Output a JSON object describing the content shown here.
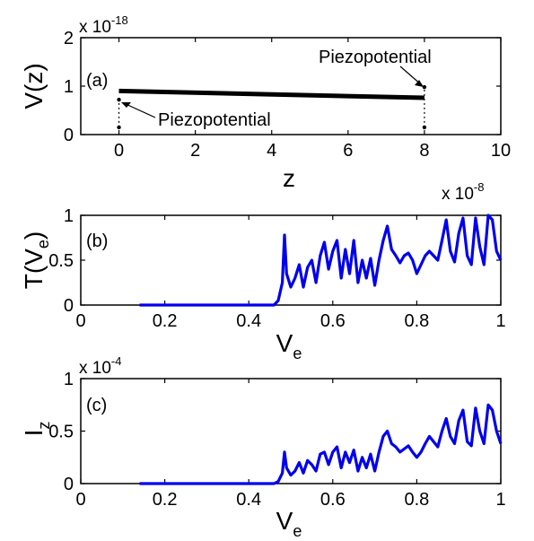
{
  "chart_data": [
    {
      "panel": "(a)",
      "type": "line",
      "xlim": [
        -1,
        10
      ],
      "ylim": [
        0,
        2
      ],
      "xticks": [
        "0",
        "2",
        "4",
        "6",
        "8",
        "10"
      ],
      "yticks": [
        "0",
        "1",
        "2"
      ],
      "xlabel": "z",
      "ylabel": "V(z)",
      "x_multiplier": {
        "base": "x 10",
        "exp": "-8"
      },
      "y_multiplier": {
        "base": "x 10",
        "exp": "-18"
      },
      "series": [
        {
          "x": [
            0,
            8
          ],
          "y": [
            0.9,
            0.76
          ],
          "color": "#000000"
        }
      ],
      "markers": [
        {
          "x": 0,
          "y": 0.15
        },
        {
          "x": 0,
          "y": 0.72
        },
        {
          "x": 8,
          "y": 0.15
        },
        {
          "x": 8,
          "y": 0.98
        }
      ],
      "annotations": [
        {
          "text": "Piezopotential",
          "point_x": 0,
          "point_y": 0.72
        },
        {
          "text": "Piezopotential",
          "point_x": 8,
          "point_y": 0.98
        }
      ]
    },
    {
      "panel": "(b)",
      "type": "line",
      "xlim": [
        0,
        1
      ],
      "ylim": [
        0,
        1
      ],
      "xticks": [
        "0",
        "0.2",
        "0.4",
        "0.6",
        "0.8",
        "1"
      ],
      "yticks": [
        "0",
        "0.5",
        "1"
      ],
      "xlabel": {
        "main": "V",
        "sub": "e"
      },
      "ylabel": {
        "pre": "T(V",
        "sub": "e",
        "post": ")"
      },
      "series": [
        {
          "color": "#0000ee",
          "x": [
            0.14,
            0.2,
            0.3,
            0.4,
            0.46,
            0.47,
            0.48,
            0.485,
            0.49,
            0.5,
            0.51,
            0.52,
            0.53,
            0.54,
            0.55,
            0.56,
            0.57,
            0.58,
            0.59,
            0.6,
            0.61,
            0.62,
            0.63,
            0.64,
            0.65,
            0.66,
            0.67,
            0.68,
            0.69,
            0.7,
            0.71,
            0.72,
            0.73,
            0.74,
            0.75,
            0.76,
            0.77,
            0.78,
            0.79,
            0.8,
            0.81,
            0.82,
            0.83,
            0.84,
            0.85,
            0.86,
            0.87,
            0.88,
            0.89,
            0.9,
            0.91,
            0.92,
            0.93,
            0.94,
            0.95,
            0.96,
            0.97,
            0.98,
            0.99,
            1.0
          ],
          "y": [
            0,
            0,
            0,
            0,
            0,
            0.05,
            0.25,
            0.78,
            0.35,
            0.2,
            0.3,
            0.45,
            0.2,
            0.42,
            0.5,
            0.25,
            0.55,
            0.7,
            0.4,
            0.6,
            0.72,
            0.3,
            0.62,
            0.35,
            0.72,
            0.25,
            0.5,
            0.3,
            0.52,
            0.22,
            0.5,
            0.72,
            0.88,
            0.62,
            0.55,
            0.47,
            0.55,
            0.58,
            0.5,
            0.35,
            0.45,
            0.55,
            0.6,
            0.55,
            0.5,
            0.72,
            0.95,
            0.6,
            0.48,
            0.8,
            0.97,
            0.55,
            0.45,
            0.97,
            0.65,
            0.45,
            1.0,
            0.95,
            0.6,
            0.5
          ]
        }
      ]
    },
    {
      "panel": "(c)",
      "type": "line",
      "xlim": [
        0,
        1
      ],
      "ylim": [
        0,
        1
      ],
      "xticks": [
        "0",
        "0.2",
        "0.4",
        "0.6",
        "0.8",
        "1"
      ],
      "yticks": [
        "0",
        "0.5",
        "1"
      ],
      "xlabel": {
        "main": "V",
        "sub": "e"
      },
      "ylabel": {
        "main": "I",
        "sub": "z"
      },
      "y_multiplier": {
        "base": "x 10",
        "exp": "-4"
      },
      "series": [
        {
          "color": "#0000ee",
          "x": [
            0.14,
            0.2,
            0.3,
            0.4,
            0.46,
            0.47,
            0.48,
            0.485,
            0.49,
            0.5,
            0.51,
            0.52,
            0.53,
            0.54,
            0.55,
            0.56,
            0.57,
            0.58,
            0.59,
            0.6,
            0.61,
            0.62,
            0.63,
            0.64,
            0.65,
            0.66,
            0.67,
            0.68,
            0.69,
            0.7,
            0.71,
            0.72,
            0.73,
            0.74,
            0.75,
            0.76,
            0.77,
            0.78,
            0.79,
            0.8,
            0.81,
            0.82,
            0.83,
            0.84,
            0.85,
            0.86,
            0.87,
            0.88,
            0.89,
            0.9,
            0.91,
            0.92,
            0.93,
            0.94,
            0.95,
            0.96,
            0.97,
            0.98,
            0.99,
            1.0
          ],
          "y": [
            0,
            0,
            0,
            0,
            0,
            0.02,
            0.1,
            0.3,
            0.15,
            0.08,
            0.12,
            0.2,
            0.1,
            0.22,
            0.18,
            0.12,
            0.28,
            0.3,
            0.18,
            0.3,
            0.35,
            0.15,
            0.3,
            0.2,
            0.32,
            0.12,
            0.25,
            0.15,
            0.28,
            0.12,
            0.3,
            0.45,
            0.5,
            0.38,
            0.35,
            0.3,
            0.33,
            0.36,
            0.3,
            0.25,
            0.3,
            0.38,
            0.45,
            0.4,
            0.35,
            0.5,
            0.62,
            0.45,
            0.38,
            0.6,
            0.7,
            0.4,
            0.36,
            0.72,
            0.5,
            0.38,
            0.75,
            0.7,
            0.5,
            0.38
          ]
        }
      ]
    }
  ]
}
